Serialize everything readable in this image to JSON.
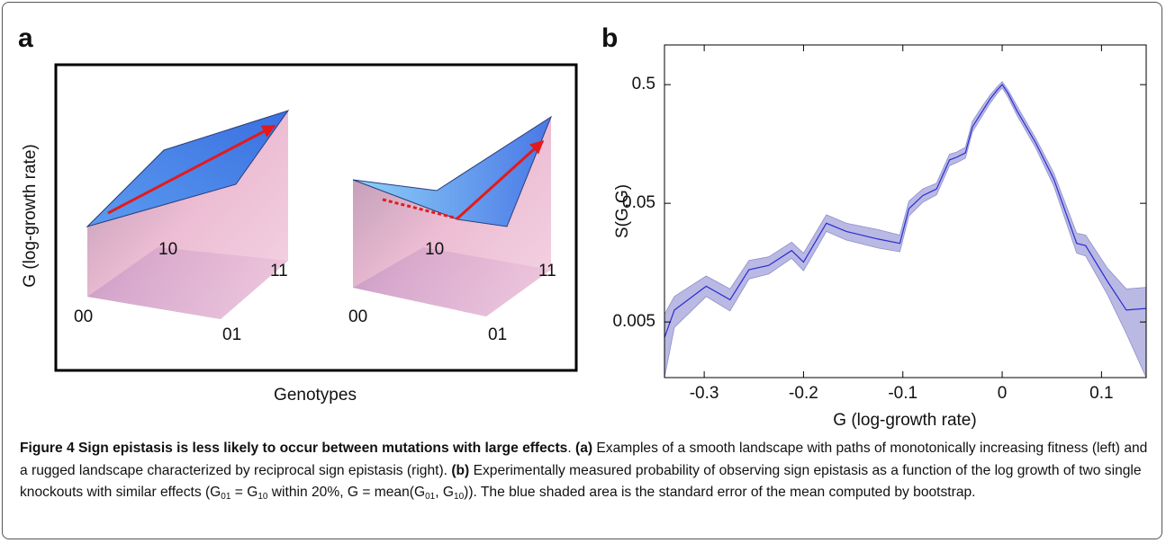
{
  "panel_a": {
    "label": "a",
    "y_label": "G (log-growth rate)",
    "x_label": "Genotypes",
    "left_landscape": {
      "corner_labels": [
        "00",
        "10",
        "11",
        "01"
      ]
    },
    "right_landscape": {
      "corner_labels": [
        "00",
        "10",
        "11",
        "01"
      ]
    }
  },
  "chart_data": {
    "type": "line",
    "panel_label": "b",
    "x_label": "G (log-growth rate)",
    "y_label": "S(G,G)",
    "yscale": "log",
    "color": "#2b2bd6",
    "band_color": "#b9b9e3",
    "xlim": [
      -0.34,
      0.145
    ],
    "ylim": [
      0.0017,
      1.08
    ],
    "xticks": [
      -0.3,
      -0.2,
      -0.1,
      0,
      0.1
    ],
    "yticks": [
      0.5,
      0.05,
      0.005
    ],
    "x": [
      -0.34,
      -0.33,
      -0.298,
      -0.274,
      -0.255,
      -0.235,
      -0.212,
      -0.2,
      -0.177,
      -0.157,
      -0.125,
      -0.103,
      -0.094,
      -0.08,
      -0.066,
      -0.053,
      -0.046,
      -0.037,
      -0.03,
      -0.021,
      -0.012,
      -0.005,
      0,
      0.006,
      0.015,
      0.034,
      0.052,
      0.075,
      0.084,
      0.106,
      0.125,
      0.145
    ],
    "values": [
      0.0037,
      0.0063,
      0.01,
      0.0077,
      0.0138,
      0.015,
      0.02,
      0.016,
      0.034,
      0.029,
      0.025,
      0.023,
      0.045,
      0.058,
      0.066,
      0.116,
      0.122,
      0.133,
      0.22,
      0.29,
      0.38,
      0.45,
      0.5,
      0.42,
      0.3,
      0.16,
      0.08,
      0.023,
      0.022,
      0.011,
      0.0063,
      0.0065
    ],
    "lower": [
      0.0017,
      0.0045,
      0.0082,
      0.0062,
      0.0115,
      0.0127,
      0.0172,
      0.0135,
      0.029,
      0.0245,
      0.021,
      0.0195,
      0.039,
      0.051,
      0.059,
      0.104,
      0.11,
      0.12,
      0.2,
      0.265,
      0.35,
      0.42,
      0.47,
      0.39,
      0.275,
      0.145,
      0.07,
      0.019,
      0.018,
      0.0085,
      0.004,
      0.0017
    ],
    "upper": [
      0.0058,
      0.0082,
      0.0122,
      0.0095,
      0.0165,
      0.0177,
      0.0235,
      0.019,
      0.04,
      0.034,
      0.03,
      0.027,
      0.052,
      0.066,
      0.074,
      0.13,
      0.135,
      0.148,
      0.245,
      0.32,
      0.41,
      0.48,
      0.53,
      0.45,
      0.33,
      0.175,
      0.09,
      0.028,
      0.027,
      0.0142,
      0.0095,
      0.0098
    ]
  },
  "caption": [
    {
      "text": "Figure 4 Sign epistasis is less likely to occur between mutations with large effects",
      "bold": true
    },
    {
      "text": ". "
    },
    {
      "text": "(a)",
      "bold": true
    },
    {
      "text": " Examples of a smooth landscape with paths of monotonically increasing fitness (left) and a rugged landscape characterized by reciprocal sign epistasis (right). "
    },
    {
      "text": "(b)",
      "bold": true
    },
    {
      "text": " Experimentally measured probability of observing sign epistasis as a function of the log growth of two single knockouts with similar effects (G"
    },
    {
      "text": "01",
      "sub": true
    },
    {
      "text": " = G"
    },
    {
      "text": "10",
      "sub": true
    },
    {
      "text": " within 20%, G = mean(G"
    },
    {
      "text": "01",
      "sub": true
    },
    {
      "text": ", G"
    },
    {
      "text": "10",
      "sub": true
    },
    {
      "text": ")). The blue shaded area is the standard error of the mean computed by bootstrap."
    }
  ]
}
